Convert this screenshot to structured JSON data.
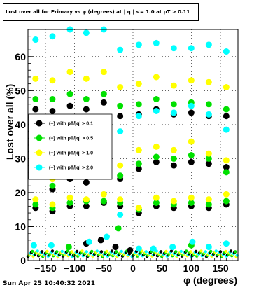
{
  "page": {
    "timestamp": "Sun Apr 25 10:40:32 2021"
  },
  "chart_data": {
    "type": "scatter",
    "title": "Lost over all for Primary vs φ (degrees) at | η | <= 1.0 at pT > 0.11",
    "xlabel": "φ (degrees)",
    "ylabel": "Lost over all (%)",
    "xlim": [
      -180,
      180
    ],
    "ylim": [
      0,
      68
    ],
    "xticks": [
      -150,
      -100,
      -50,
      0,
      50,
      100,
      150
    ],
    "yticks": [
      0,
      10,
      20,
      30,
      40,
      50,
      60
    ],
    "grid": true,
    "legend_position": "left",
    "x": [
      -167,
      -138,
      -108,
      -80,
      -50,
      -22,
      10,
      40,
      70,
      100,
      130,
      160
    ],
    "series": [
      {
        "name": "(+) with pT/|q| > 0.1",
        "color": "#000000",
        "top": [
          44.5,
          44,
          45.5,
          44.5,
          46.5,
          42.5,
          43,
          44.5,
          43,
          43.5,
          42.5,
          42.5
        ],
        "mid": [
          25.5,
          21,
          24,
          23,
          25,
          24,
          27,
          29,
          28,
          29,
          28.5,
          27.5
        ],
        "low": [
          15.5,
          14.5,
          16,
          16,
          17,
          16,
          14,
          16,
          15.5,
          16,
          15.5,
          16.5
        ]
      },
      {
        "name": "(+) with pT/|q| > 0.5",
        "color": "#00e000",
        "top": [
          47.5,
          47.5,
          49,
          47.5,
          49,
          45.5,
          46,
          47.5,
          46,
          46.5,
          46,
          44.5
        ],
        "mid": [
          28,
          22,
          25.5,
          25,
          27,
          25,
          28.5,
          30.5,
          30,
          31,
          30,
          26
        ],
        "low": [
          16.5,
          15.5,
          17,
          17.5,
          17.5,
          17,
          15,
          17,
          16.5,
          17,
          16.5,
          17.5
        ]
      },
      {
        "name": "(+) with pT/|q| > 1.0",
        "color": "#ffff00",
        "top": [
          53.5,
          53,
          55.5,
          53.5,
          55.5,
          51,
          52,
          54,
          51.5,
          53,
          52.5,
          51
        ],
        "mid": [
          30.5,
          24,
          27.5,
          27,
          29.5,
          28,
          32.5,
          33.5,
          32.5,
          35,
          31.5,
          29.5
        ],
        "low": [
          18,
          16.5,
          18.5,
          18,
          19.5,
          18,
          15.5,
          18.5,
          17.5,
          18.5,
          18,
          19.5
        ]
      },
      {
        "name": "(+) with pT/|q| > 2.0",
        "color": "#00ffff",
        "top": [
          65,
          66,
          68,
          67,
          68,
          62,
          63.5,
          64,
          62.5,
          62.5,
          63.5,
          61.5
        ],
        "mid": [
          null,
          null,
          null,
          null,
          null,
          38,
          42.5,
          44,
          43.5,
          45.5,
          43,
          38.5
        ],
        "low": [
          null,
          null,
          null,
          null,
          null,
          13.5,
          null,
          null,
          null,
          null,
          null,
          null
        ]
      }
    ],
    "baseline": {
      "note": "dense points near 0-5 across full phi range",
      "points": [
        {
          "x": -170,
          "y": 4.5,
          "color": "#00ffff"
        },
        {
          "x": -140,
          "y": 4.5,
          "color": "#00ffff"
        },
        {
          "x": -110,
          "y": 4,
          "color": "#00e000"
        },
        {
          "x": -80,
          "y": 5,
          "color": "#000000"
        },
        {
          "x": -75,
          "y": 5.5,
          "color": "#00ffff"
        },
        {
          "x": -55,
          "y": 6,
          "color": "#000000"
        },
        {
          "x": -45,
          "y": 7,
          "color": "#00ffff"
        },
        {
          "x": -30,
          "y": 4,
          "color": "#000000"
        },
        {
          "x": -25,
          "y": 9.5,
          "color": "#00e000"
        },
        {
          "x": -5,
          "y": 3,
          "color": "#000000"
        },
        {
          "x": 10,
          "y": 3.5,
          "color": "#00ffff"
        },
        {
          "x": 35,
          "y": 3.5,
          "color": "#00ffff"
        },
        {
          "x": 68,
          "y": 4,
          "color": "#00ffff"
        },
        {
          "x": 100,
          "y": 4.5,
          "color": "#00e000"
        },
        {
          "x": 102,
          "y": 5.5,
          "color": "#00ffff"
        },
        {
          "x": 130,
          "y": 4,
          "color": "#00ffff"
        },
        {
          "x": 160,
          "y": 5,
          "color": "#00ffff"
        }
      ]
    }
  }
}
